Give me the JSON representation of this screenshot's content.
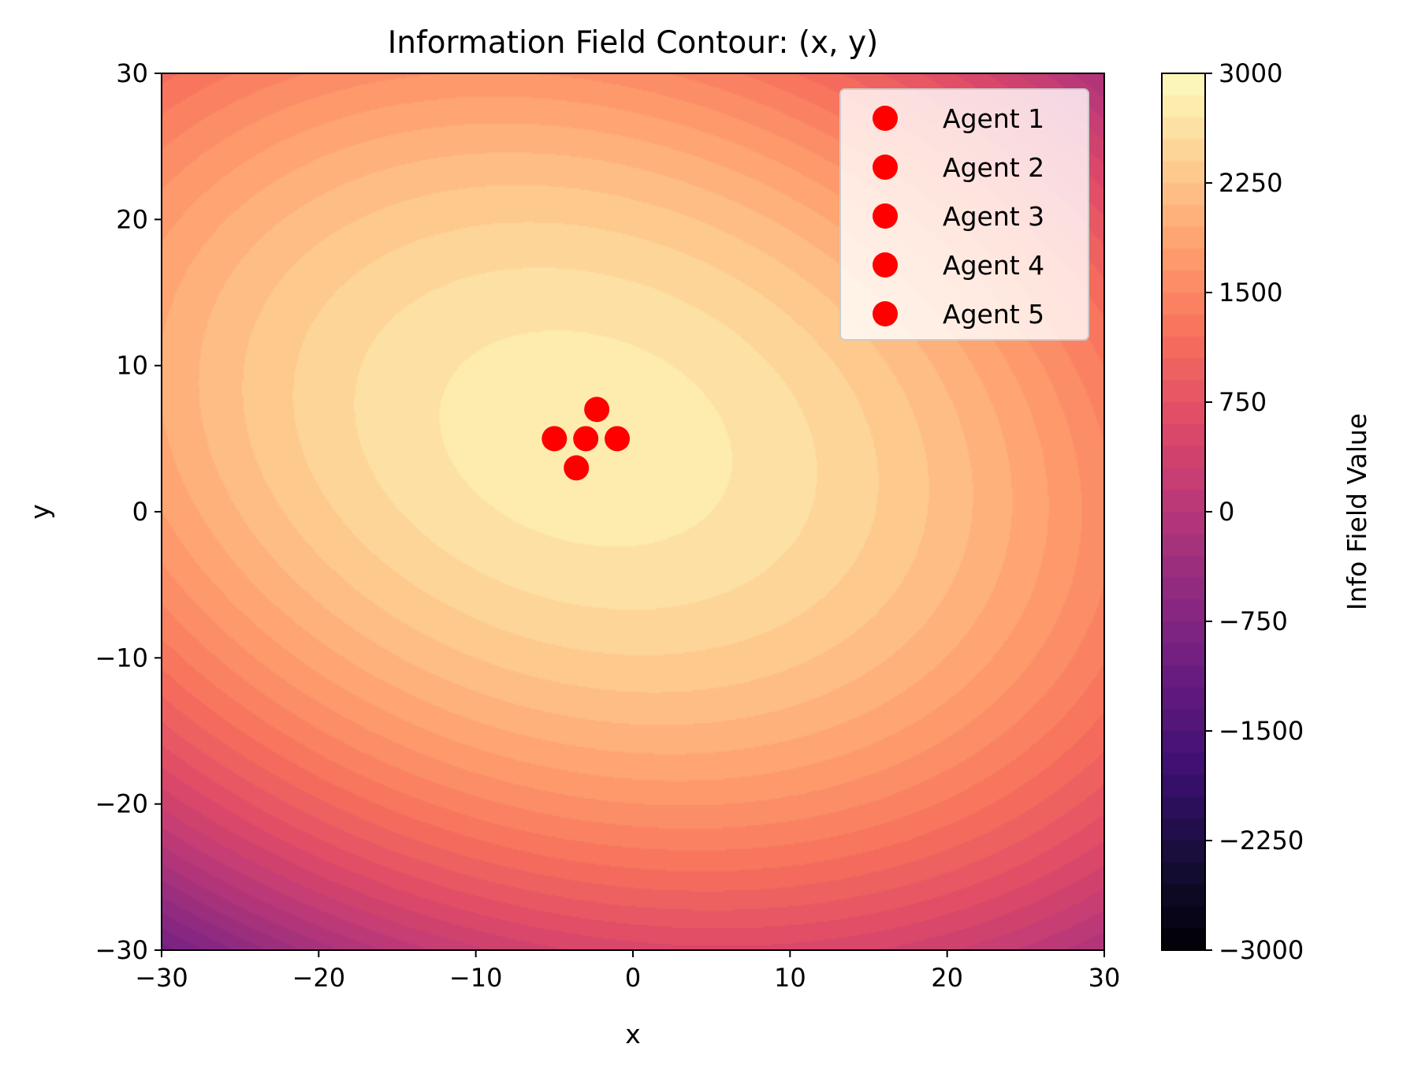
{
  "chart_data": {
    "type": "contour",
    "title": "Information Field Contour: (x, y)",
    "xlabel": "x",
    "ylabel": "y",
    "xlim": [
      -30,
      30
    ],
    "ylim": [
      -30,
      30
    ],
    "xticks": [
      -30,
      -20,
      -10,
      0,
      10,
      20,
      30
    ],
    "yticks": [
      -30,
      -20,
      -10,
      0,
      10,
      20,
      30
    ],
    "xtick_labels": [
      "−30",
      "−20",
      "−10",
      "0",
      "10",
      "20",
      "30"
    ],
    "ytick_labels": [
      "−30",
      "−20",
      "−10",
      "0",
      "10",
      "20",
      "30"
    ],
    "field": {
      "peak_value": 2800,
      "peak_center": [
        -3,
        5
      ],
      "level_min": -3000,
      "level_max": 3000,
      "level_count": 40
    },
    "colorbar": {
      "label": "Info Field Value",
      "range": [
        -3000,
        3000
      ],
      "ticks": [
        3000,
        2250,
        1500,
        750,
        0,
        -750,
        -1500,
        -2250,
        -3000
      ],
      "tick_labels": [
        "3000",
        "2250",
        "1500",
        "750",
        "0",
        "−750",
        "−1500",
        "−2250",
        "−3000"
      ],
      "colormap": "magma"
    },
    "legend": {
      "location": "upper right",
      "entries": [
        "Agent 1",
        "Agent 2",
        "Agent 3",
        "Agent 4",
        "Agent 5"
      ]
    },
    "agents": [
      {
        "name": "Agent 1",
        "x": -3,
        "y": 5,
        "color": "#ff0000"
      },
      {
        "name": "Agent 2",
        "x": -1,
        "y": 5,
        "color": "#ff0000"
      },
      {
        "name": "Agent 3",
        "x": -5,
        "y": 5,
        "color": "#ff0000"
      },
      {
        "name": "Agent 4",
        "x": -2.3,
        "y": 7,
        "color": "#ff0000"
      },
      {
        "name": "Agent 5",
        "x": -3.6,
        "y": 3,
        "color": "#ff0000"
      }
    ]
  }
}
